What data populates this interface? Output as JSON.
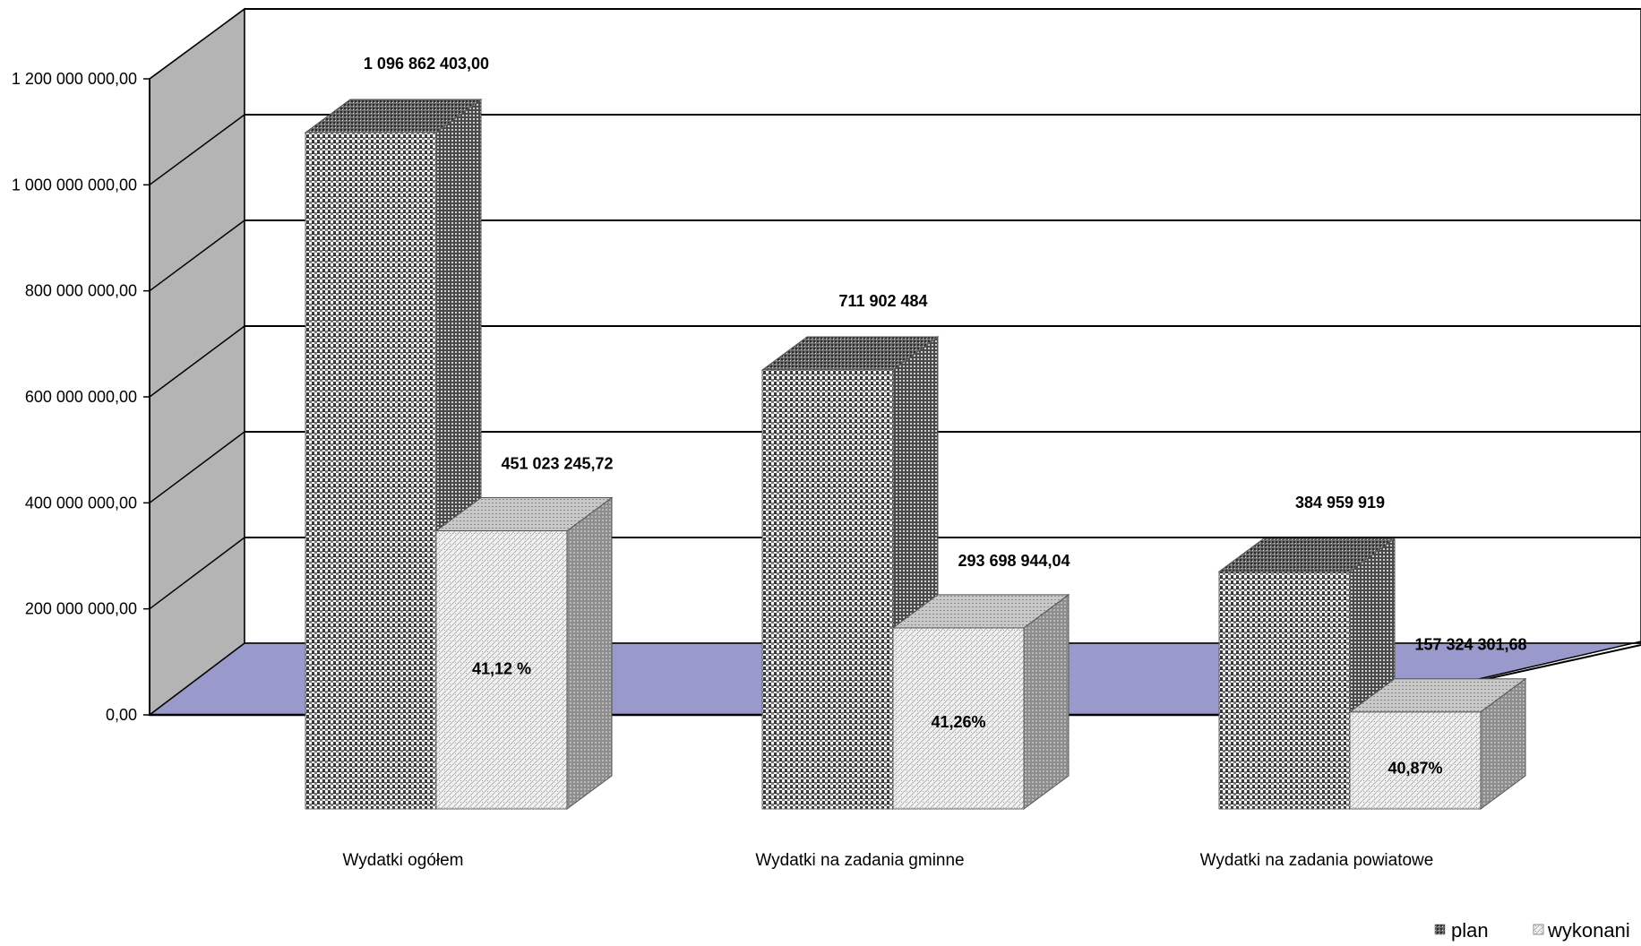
{
  "chart_data": {
    "type": "bar",
    "title": "",
    "xlabel": "",
    "ylabel": "",
    "ylim": [
      0,
      1200000000
    ],
    "yticks": [
      "0,00",
      "200 000 000,00",
      "400 000 000,00",
      "600 000 000,00",
      "800 000 000,00",
      "1 000 000 000,00",
      "1 200 000 000,00"
    ],
    "categories": [
      "Wydatki ogółem",
      "Wydatki na zadania gminne",
      "Wydatki na zadania powiatowe"
    ],
    "series": [
      {
        "name": "plan",
        "values": [
          1096862403.0,
          711902484,
          384959919
        ],
        "labels": [
          "1 096 862 403,00",
          "711 902 484",
          "384 959 919"
        ]
      },
      {
        "name": "wykonanie",
        "values": [
          451023245.72,
          293698944.04,
          157324301.68
        ],
        "labels": [
          "451 023 245,72",
          "293 698 944,04",
          "157 324 301,68"
        ],
        "percent_labels": [
          "41,12 %",
          "41,26%",
          "40,87%"
        ]
      }
    ],
    "legend_labels": [
      "plan",
      "wykonani"
    ],
    "legend_position": "bottom-right",
    "grid": true,
    "three_d": true,
    "colors": {
      "floor": "#9999cc",
      "back_wall": "#ffffff",
      "side_wall": "#b4b4b4",
      "plan_front": "#8c8c8c",
      "plan_side": "#555555",
      "wyk_front": "#e8e8e8",
      "wyk_side": "#9a9a9a"
    }
  }
}
